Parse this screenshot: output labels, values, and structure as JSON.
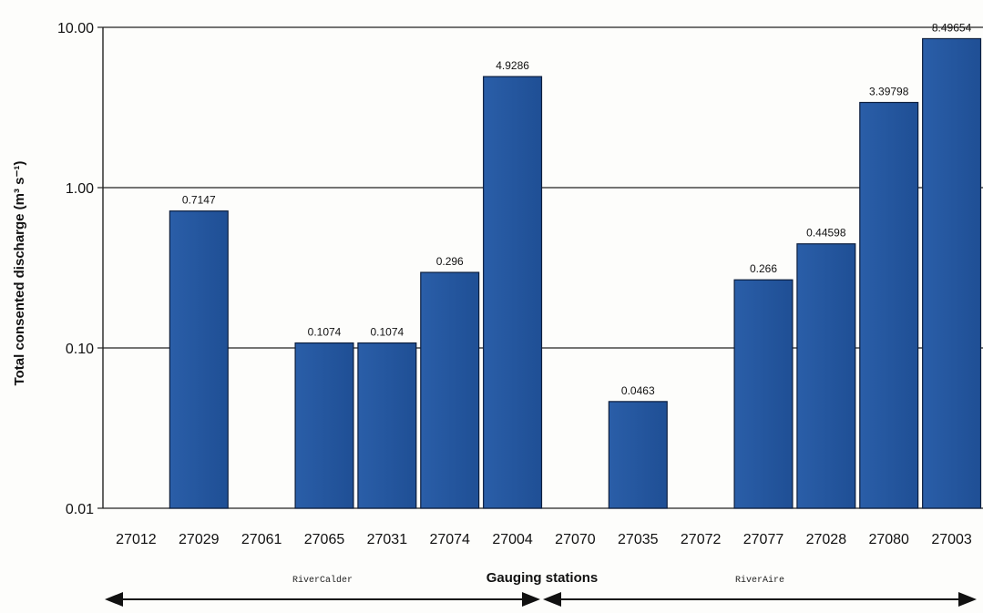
{
  "chart_data": {
    "type": "bar",
    "xlabel": "Gauging stations",
    "ylabel": "Total consented discharge (m³ s⁻¹)",
    "yscale": "log",
    "ylim": [
      0.01,
      10
    ],
    "yticks": [
      "0.01",
      "0.10",
      "1.00",
      "10.00"
    ],
    "grid": "horizontal",
    "categories": [
      "27012",
      "27029",
      "27061",
      "27065",
      "27031",
      "27074",
      "27004",
      "27070",
      "27035",
      "27072",
      "27077",
      "27028",
      "27080",
      "27003"
    ],
    "values": [
      null,
      0.7147,
      null,
      0.1074,
      0.1074,
      0.296,
      4.9286,
      null,
      0.0463,
      null,
      0.266,
      0.44598,
      3.39798,
      8.49654
    ],
    "value_labels": [
      "",
      "0.7147",
      "",
      "0.1074",
      "0.1074",
      "0.296",
      "4.9286",
      "",
      "0.0463",
      "",
      "0.266",
      "0.44598",
      "3.39798",
      "8.49654"
    ],
    "bar_color": "#2a5da6",
    "groups": [
      {
        "label": "RiverCalder",
        "from": "27012",
        "to": "27004"
      },
      {
        "label": "RiverAire",
        "from": "27070",
        "to": "27003"
      }
    ]
  }
}
